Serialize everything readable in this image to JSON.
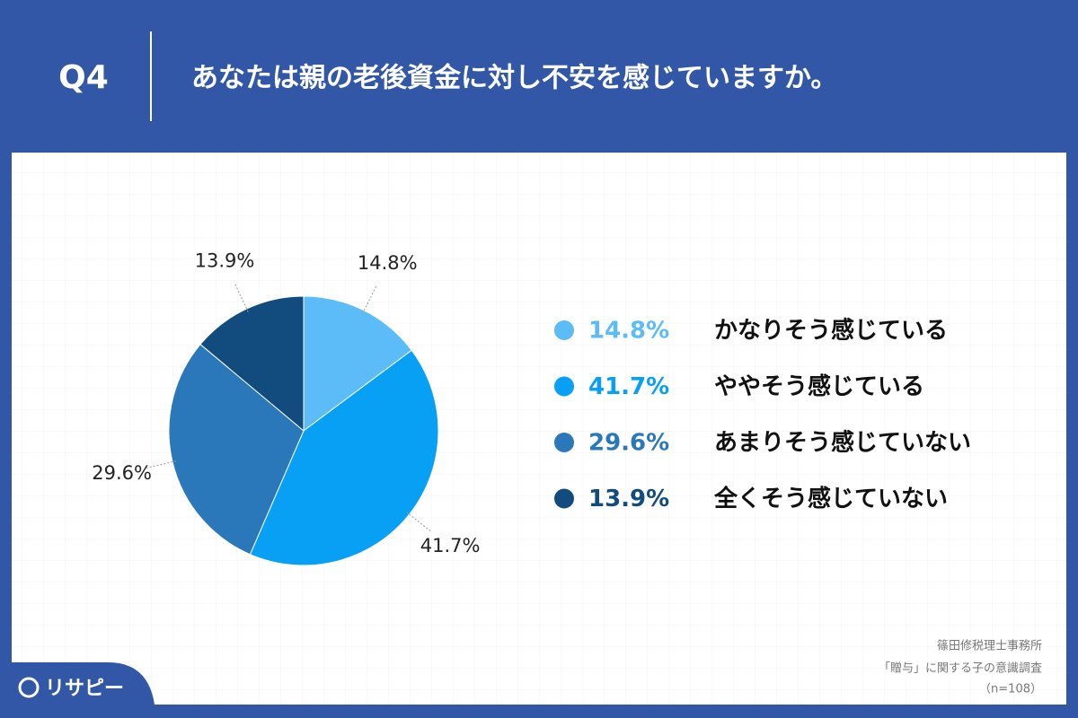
{
  "header": {
    "number": "Q4",
    "title": "あなたは親の老後資金に対し不安を感じていますか。"
  },
  "chart_data": {
    "type": "pie",
    "categories": [
      "かなりそう感じている",
      "ややそう感じている",
      "あまりそう感じていない",
      "全くそう感じていない"
    ],
    "values": [
      14.8,
      41.7,
      29.6,
      13.9
    ],
    "value_labels": [
      "14.8%",
      "41.7%",
      "29.6%",
      "13.9%"
    ],
    "colors": [
      "#5bbcf8",
      "#08a0f4",
      "#2a78b9",
      "#124c7e"
    ],
    "legend": "right"
  },
  "source": [
    "篠田修税理士事務所",
    "「贈与」に関する子の意識調査",
    "（n=108）"
  ],
  "logo": "リサピー"
}
